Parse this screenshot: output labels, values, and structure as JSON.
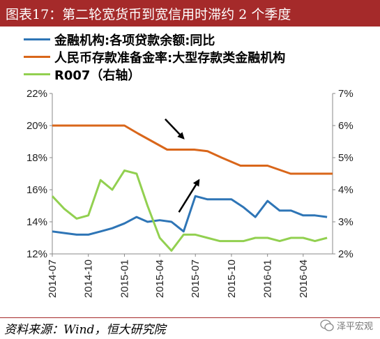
{
  "title": "图表17：第二轮宽货币到宽信用时滞约 2 个季度",
  "source": "资料来源：Wind，恒大研究院",
  "watermark": "泽平宏观",
  "colors": {
    "title_bg": "#a52a2a",
    "blue": "#2e75b6",
    "orange": "#d9661a",
    "green": "#92d050",
    "arrow": "#000000"
  },
  "chart_data": {
    "type": "line",
    "x_tick_labels": [
      "2014-07",
      "2014-10",
      "2015-01",
      "2015-04",
      "2015-07",
      "2015-10",
      "2016-01",
      "2016-04"
    ],
    "x_tick_dates": [
      "2014-07-01",
      "2014-10-01",
      "2015-01-01",
      "2015-04-01",
      "2015-07-01",
      "2015-10-01",
      "2016-01-01",
      "2016-04-01"
    ],
    "xlim": [
      "2014-07-01",
      "2016-06-15"
    ],
    "ylim_left": [
      12,
      22
    ],
    "yticks_left": [
      "12%",
      "14%",
      "16%",
      "18%",
      "20%",
      "22%"
    ],
    "ylim_right": [
      2,
      7
    ],
    "yticks_right": [
      "2%",
      "3%",
      "4%",
      "5%",
      "6%",
      "7%"
    ],
    "series": [
      {
        "name": "金融机构:各项贷款余额:同比",
        "axis": "left",
        "color": "#2e75b6",
        "x": [
          "2014-07-01",
          "2014-08-01",
          "2014-09-01",
          "2014-10-01",
          "2014-11-01",
          "2014-12-01",
          "2015-01-01",
          "2015-02-01",
          "2015-03-01",
          "2015-04-01",
          "2015-05-01",
          "2015-06-01",
          "2015-07-01",
          "2015-08-01",
          "2015-09-01",
          "2015-10-01",
          "2015-11-01",
          "2015-12-01",
          "2016-01-01",
          "2016-02-01",
          "2016-03-01",
          "2016-04-01",
          "2016-05-01",
          "2016-06-01"
        ],
        "y": [
          13.4,
          13.3,
          13.2,
          13.2,
          13.4,
          13.6,
          13.9,
          14.3,
          14.0,
          14.1,
          14.0,
          13.4,
          15.6,
          15.4,
          15.4,
          15.4,
          14.9,
          14.3,
          15.3,
          14.7,
          14.7,
          14.4,
          14.4,
          14.3
        ]
      },
      {
        "name": "人民币存款准备金率:大型存款类金融机构",
        "axis": "left",
        "color": "#d9661a",
        "x": [
          "2014-07-01",
          "2015-01-01",
          "2015-02-05",
          "2015-04-20",
          "2015-05-10",
          "2015-06-28",
          "2015-08-01",
          "2015-09-06",
          "2015-10-24",
          "2015-12-01",
          "2016-01-01",
          "2016-02-29",
          "2016-04-01",
          "2016-06-15"
        ],
        "y": [
          20.0,
          20.0,
          19.5,
          18.5,
          18.5,
          18.5,
          18.4,
          18.0,
          17.5,
          17.5,
          17.5,
          17.0,
          17.0,
          17.0
        ]
      },
      {
        "name": "R007（右轴）",
        "axis": "right",
        "color": "#92d050",
        "x": [
          "2014-07-01",
          "2014-08-01",
          "2014-09-01",
          "2014-10-01",
          "2014-11-01",
          "2014-12-01",
          "2015-01-01",
          "2015-02-01",
          "2015-03-01",
          "2015-04-01",
          "2015-05-01",
          "2015-06-01",
          "2015-07-01",
          "2015-08-01",
          "2015-09-01",
          "2015-10-01",
          "2015-11-01",
          "2015-12-01",
          "2016-01-01",
          "2016-02-01",
          "2016-03-01",
          "2016-04-01",
          "2016-05-01",
          "2016-06-01"
        ],
        "y": [
          3.8,
          3.4,
          3.1,
          3.2,
          4.3,
          4.0,
          4.6,
          4.5,
          3.5,
          2.5,
          2.1,
          2.6,
          2.6,
          2.5,
          2.4,
          2.4,
          2.4,
          2.5,
          2.5,
          2.4,
          2.5,
          2.5,
          2.4,
          2.5
        ]
      }
    ],
    "annotations": [
      {
        "type": "arrow",
        "direction": "down",
        "from": [
          "2015-04-15",
          20.4
        ],
        "to": [
          "2015-06-01",
          19.2
        ]
      },
      {
        "type": "arrow",
        "direction": "up",
        "from": [
          "2015-05-20",
          14.6
        ],
        "to": [
          "2015-07-10",
          16.6
        ]
      }
    ],
    "legend": "top-left",
    "grid": false
  }
}
